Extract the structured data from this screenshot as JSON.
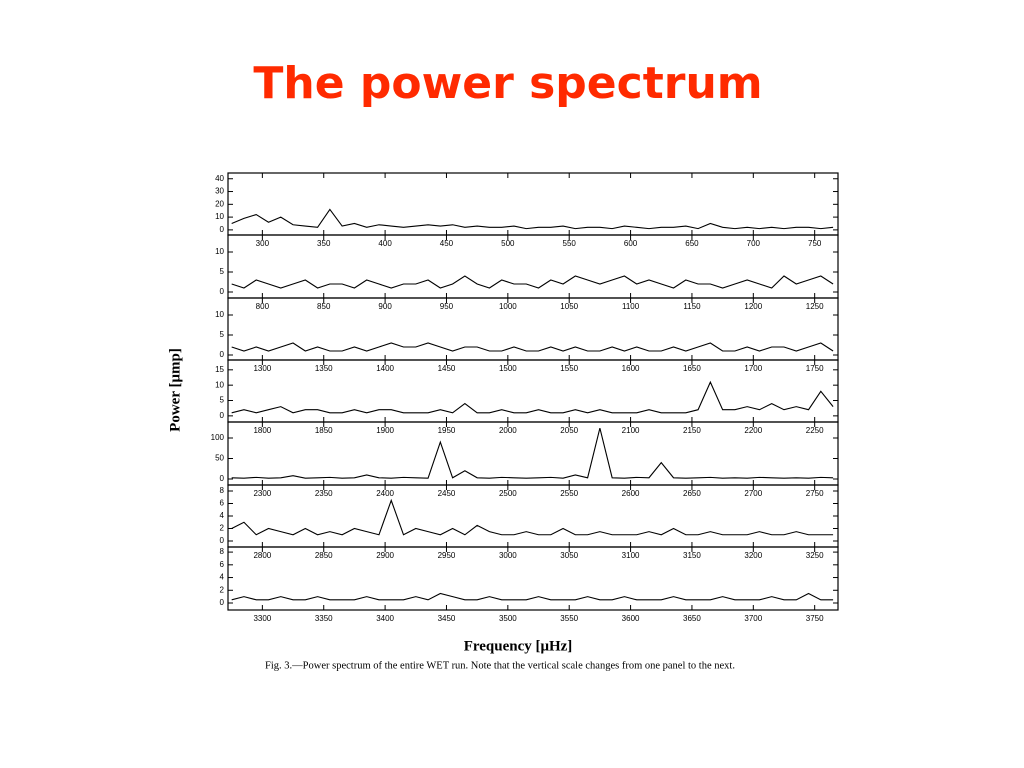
{
  "title": "The power spectrum",
  "y_label": "Power [μmp]",
  "x_label": "Frequency [μHz]",
  "caption": "Fig. 3.—Power spectrum of the entire WET run. Note that the vertical scale changes from one panel to the next.",
  "chart_data": [
    {
      "type": "line",
      "color": "#000000",
      "xlim": [
        272,
        769
      ],
      "ylim": [
        -4,
        44.5
      ],
      "xticks": [
        300,
        350,
        400,
        450,
        500,
        550,
        600,
        650,
        700,
        750
      ],
      "yticks": [
        0,
        10,
        20,
        30,
        40
      ],
      "x": [
        275,
        285,
        295,
        305,
        315,
        325,
        335,
        345,
        355,
        365,
        375,
        385,
        395,
        405,
        415,
        425,
        435,
        445,
        455,
        465,
        475,
        485,
        495,
        505,
        515,
        525,
        535,
        545,
        555,
        565,
        575,
        585,
        595,
        605,
        615,
        625,
        635,
        645,
        655,
        665,
        675,
        685,
        695,
        705,
        715,
        725,
        735,
        745,
        755,
        765
      ],
      "values": [
        5,
        9,
        12,
        6,
        10,
        4,
        3,
        2,
        16,
        3,
        5,
        2,
        4,
        3,
        2,
        3,
        4,
        3,
        4,
        2,
        3,
        2,
        2,
        3,
        1,
        2,
        2,
        3,
        1,
        2,
        2,
        1,
        3,
        2,
        1,
        2,
        2,
        3,
        1,
        5,
        2,
        1,
        2,
        1,
        2,
        1,
        2,
        2,
        1,
        2
      ]
    },
    {
      "type": "line",
      "color": "#000000",
      "xlim": [
        772,
        1269
      ],
      "ylim": [
        -1.5,
        14.25
      ],
      "xticks": [
        800,
        850,
        900,
        950,
        1000,
        1050,
        1100,
        1150,
        1200,
        1250
      ],
      "yticks": [
        0,
        5,
        10
      ],
      "x": [
        775,
        785,
        795,
        805,
        815,
        825,
        835,
        845,
        855,
        865,
        875,
        885,
        895,
        905,
        915,
        925,
        935,
        945,
        955,
        965,
        975,
        985,
        995,
        1005,
        1015,
        1025,
        1035,
        1045,
        1055,
        1065,
        1075,
        1085,
        1095,
        1105,
        1115,
        1125,
        1135,
        1145,
        1155,
        1165,
        1175,
        1185,
        1195,
        1205,
        1215,
        1225,
        1235,
        1245,
        1255,
        1265
      ],
      "values": [
        2,
        1,
        3,
        2,
        1,
        2,
        3,
        1,
        2,
        2,
        1,
        3,
        2,
        1,
        2,
        2,
        3,
        1,
        2,
        4,
        2,
        1,
        3,
        2,
        2,
        1,
        3,
        2,
        4,
        3,
        2,
        3,
        4,
        2,
        3,
        2,
        1,
        3,
        2,
        2,
        1,
        2,
        3,
        2,
        1,
        4,
        2,
        3,
        4,
        2
      ]
    },
    {
      "type": "line",
      "color": "#000000",
      "xlim": [
        1272,
        1769
      ],
      "ylim": [
        -1.25,
        14.25
      ],
      "xticks": [
        1300,
        1350,
        1400,
        1450,
        1500,
        1550,
        1600,
        1650,
        1700,
        1750
      ],
      "yticks": [
        0,
        5,
        10
      ],
      "x": [
        1275,
        1285,
        1295,
        1305,
        1315,
        1325,
        1335,
        1345,
        1355,
        1365,
        1375,
        1385,
        1395,
        1405,
        1415,
        1425,
        1435,
        1445,
        1455,
        1465,
        1475,
        1485,
        1495,
        1505,
        1515,
        1525,
        1535,
        1545,
        1555,
        1565,
        1575,
        1585,
        1595,
        1605,
        1615,
        1625,
        1635,
        1645,
        1655,
        1665,
        1675,
        1685,
        1695,
        1705,
        1715,
        1725,
        1735,
        1745,
        1755,
        1765
      ],
      "values": [
        2,
        1,
        2,
        1,
        2,
        3,
        1,
        2,
        1,
        1,
        2,
        1,
        2,
        3,
        2,
        2,
        3,
        2,
        1,
        2,
        2,
        1,
        1,
        2,
        1,
        1,
        2,
        1,
        2,
        1,
        1,
        2,
        1,
        2,
        1,
        1,
        2,
        1,
        2,
        3,
        1,
        1,
        2,
        1,
        2,
        2,
        1,
        2,
        3,
        1
      ]
    },
    {
      "type": "line",
      "color": "#000000",
      "xlim": [
        1772,
        2269
      ],
      "ylim": [
        -2,
        18.2
      ],
      "xticks": [
        1800,
        1850,
        1900,
        1950,
        2000,
        2050,
        2100,
        2150,
        2200,
        2250
      ],
      "yticks": [
        0,
        5,
        10,
        15
      ],
      "x": [
        1775,
        1785,
        1795,
        1805,
        1815,
        1825,
        1835,
        1845,
        1855,
        1865,
        1875,
        1885,
        1895,
        1905,
        1915,
        1925,
        1935,
        1945,
        1955,
        1965,
        1975,
        1985,
        1995,
        2005,
        2015,
        2025,
        2035,
        2045,
        2055,
        2065,
        2075,
        2085,
        2095,
        2105,
        2115,
        2125,
        2135,
        2145,
        2155,
        2165,
        2175,
        2185,
        2195,
        2205,
        2215,
        2225,
        2235,
        2245,
        2255,
        2265
      ],
      "values": [
        1,
        2,
        1,
        2,
        3,
        1,
        2,
        2,
        1,
        1,
        2,
        1,
        2,
        2,
        1,
        1,
        1,
        2,
        1,
        4,
        1,
        1,
        2,
        1,
        1,
        2,
        1,
        1,
        2,
        1,
        2,
        1,
        1,
        1,
        2,
        1,
        1,
        1,
        2,
        11,
        2,
        2,
        3,
        2,
        4,
        2,
        3,
        2,
        8,
        3
      ]
    },
    {
      "type": "line",
      "color": "#000000",
      "xlim": [
        2272,
        2769
      ],
      "ylim": [
        -14.6,
        139
      ],
      "xticks": [
        2300,
        2350,
        2400,
        2450,
        2500,
        2550,
        2600,
        2650,
        2700,
        2750
      ],
      "yticks": [
        0,
        50,
        100
      ],
      "x": [
        2275,
        2285,
        2295,
        2305,
        2315,
        2325,
        2335,
        2345,
        2355,
        2365,
        2375,
        2385,
        2395,
        2405,
        2415,
        2425,
        2435,
        2445,
        2455,
        2465,
        2475,
        2485,
        2495,
        2505,
        2515,
        2525,
        2535,
        2545,
        2555,
        2565,
        2575,
        2585,
        2595,
        2605,
        2615,
        2625,
        2635,
        2645,
        2655,
        2665,
        2675,
        2685,
        2695,
        2705,
        2715,
        2725,
        2735,
        2745,
        2755,
        2765
      ],
      "values": [
        3,
        2,
        4,
        2,
        3,
        8,
        2,
        3,
        4,
        2,
        3,
        10,
        3,
        2,
        4,
        3,
        2,
        90,
        3,
        20,
        3,
        2,
        4,
        3,
        2,
        3,
        4,
        2,
        10,
        3,
        124,
        3,
        2,
        4,
        3,
        40,
        3,
        2,
        3,
        4,
        2,
        3,
        2,
        4,
        3,
        2,
        3,
        2,
        4,
        3
      ]
    },
    {
      "type": "line",
      "color": "#000000",
      "xlim": [
        2772,
        3269
      ],
      "ylim": [
        -0.96,
        8.96
      ],
      "xticks": [
        2800,
        2850,
        2900,
        2950,
        3000,
        3050,
        3100,
        3150,
        3200,
        3250
      ],
      "yticks": [
        0,
        2,
        4,
        6,
        8
      ],
      "x": [
        2775,
        2785,
        2795,
        2805,
        2815,
        2825,
        2835,
        2845,
        2855,
        2865,
        2875,
        2885,
        2895,
        2905,
        2915,
        2925,
        2935,
        2945,
        2955,
        2965,
        2975,
        2985,
        2995,
        3005,
        3015,
        3025,
        3035,
        3045,
        3055,
        3065,
        3075,
        3085,
        3095,
        3105,
        3115,
        3125,
        3135,
        3145,
        3155,
        3165,
        3175,
        3185,
        3195,
        3205,
        3215,
        3225,
        3235,
        3245,
        3255,
        3265
      ],
      "values": [
        2,
        3,
        1,
        2,
        1.5,
        1,
        2,
        1,
        1.5,
        1,
        2,
        1.5,
        1,
        6.5,
        1,
        2,
        1.5,
        1,
        2,
        1,
        2.5,
        1.5,
        1,
        1,
        1.5,
        1,
        1,
        2,
        1,
        1,
        1.5,
        1,
        1,
        1,
        1.5,
        1,
        2,
        1,
        1,
        1.5,
        1,
        1,
        1,
        1.5,
        1,
        1,
        1.5,
        1,
        1,
        1
      ]
    },
    {
      "type": "line",
      "color": "#000000",
      "xlim": [
        3272,
        3769
      ],
      "ylim": [
        -1.1,
        8.8
      ],
      "xticks": [
        3300,
        3350,
        3400,
        3450,
        3500,
        3550,
        3600,
        3650,
        3700,
        3750
      ],
      "yticks": [
        0,
        2,
        4,
        6,
        8
      ],
      "x": [
        3275,
        3285,
        3295,
        3305,
        3315,
        3325,
        3335,
        3345,
        3355,
        3365,
        3375,
        3385,
        3395,
        3405,
        3415,
        3425,
        3435,
        3445,
        3455,
        3465,
        3475,
        3485,
        3495,
        3505,
        3515,
        3525,
        3535,
        3545,
        3555,
        3565,
        3575,
        3585,
        3595,
        3605,
        3615,
        3625,
        3635,
        3645,
        3655,
        3665,
        3675,
        3685,
        3695,
        3705,
        3715,
        3725,
        3735,
        3745,
        3755,
        3765
      ],
      "values": [
        0.5,
        1,
        0.5,
        0.5,
        1,
        0.5,
        0.5,
        1,
        0.5,
        0.5,
        0.5,
        1,
        0.5,
        0.5,
        0.5,
        1,
        0.5,
        1.5,
        1,
        0.5,
        0.5,
        1,
        0.5,
        0.5,
        0.5,
        1,
        0.5,
        0.5,
        0.5,
        1,
        0.5,
        0.5,
        1,
        0.5,
        0.5,
        0.5,
        1,
        0.5,
        0.5,
        0.5,
        1,
        0.5,
        0.5,
        0.5,
        1,
        0.5,
        0.5,
        1.5,
        0.5,
        0.5
      ]
    }
  ]
}
